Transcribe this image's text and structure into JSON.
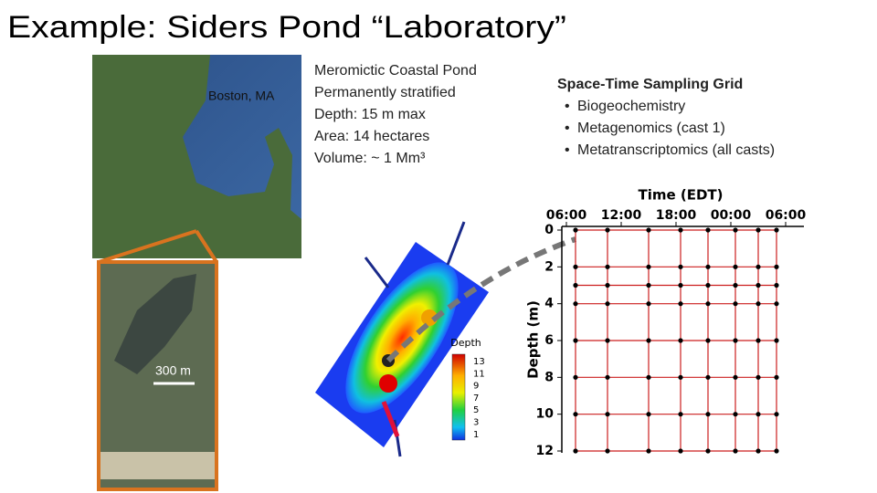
{
  "title": "Example: Siders Pond “Laboratory”",
  "map": {
    "city_label": "Boston, MA",
    "scale_label": "300 m"
  },
  "facts": [
    "Meromictic Coastal Pond",
    "Permanently stratified",
    "Depth: 15 m max",
    "Area: 14 hectares",
    "Volume: ~ 1 Mm³"
  ],
  "sampling": {
    "heading": "Space-Time Sampling Grid",
    "bullets": [
      "Biogeochemistry",
      "Metagenomics (cast 1)",
      "Metatranscriptomics (all casts)"
    ]
  },
  "depth_legend": {
    "title": "Depth",
    "ticks": [
      13,
      11,
      9,
      7,
      5,
      3,
      1
    ]
  },
  "chart_data": {
    "type": "scatter",
    "x_label": "Time (EDT)",
    "y_label": "Depth (m)",
    "xlim": [
      5.5,
      32
    ],
    "xticks": [
      {
        "value": 6,
        "label": "06:00"
      },
      {
        "value": 12,
        "label": "12:00"
      },
      {
        "value": 18,
        "label": "18:00"
      },
      {
        "value": 24,
        "label": "00:00"
      },
      {
        "value": 30,
        "label": "06:00"
      }
    ],
    "ylim": [
      0,
      12
    ],
    "yticks": [
      0,
      2,
      4,
      6,
      8,
      10,
      12
    ],
    "casts": [
      7,
      10.5,
      15,
      18.5,
      21.5,
      24.5,
      27,
      29
    ],
    "depths": [
      0,
      2,
      3,
      4,
      6,
      8,
      10,
      12
    ],
    "color": "#cc1f1f"
  }
}
